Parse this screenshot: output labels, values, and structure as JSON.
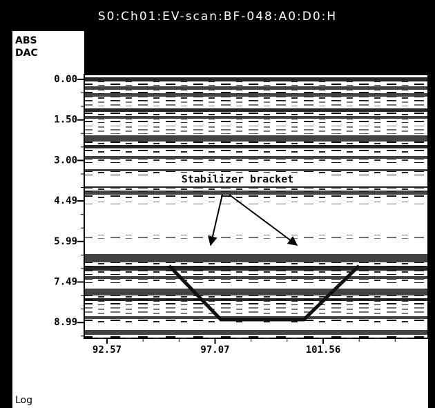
{
  "header": {
    "title": "S0:Ch01:EV-scan:BF-048:A0:D0:H"
  },
  "axis": {
    "mode_labels": [
      "ABS",
      "DAC"
    ],
    "y_labels": [
      "0.00",
      "1.50",
      "3.00",
      "4.49",
      "5.99",
      "7.49",
      "8.99"
    ],
    "x_labels": [
      "92.57",
      "97.07",
      "101.56"
    ]
  },
  "annotation": "Stabilizer bracket",
  "footer": "Log"
}
